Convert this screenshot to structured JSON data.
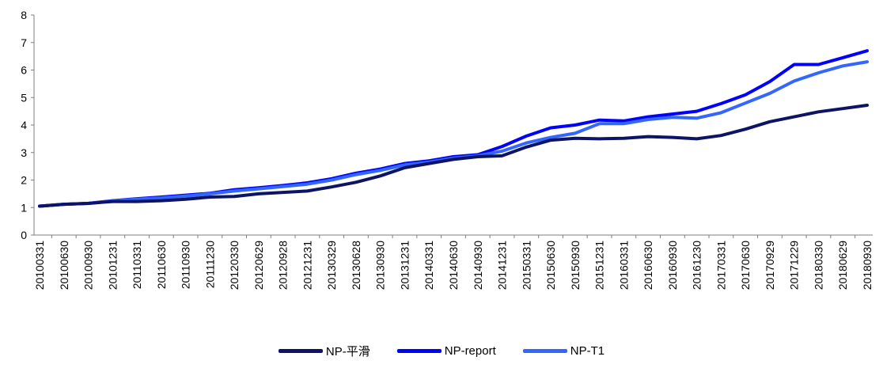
{
  "chart_data": {
    "type": "line",
    "title": "",
    "xlabel": "",
    "ylabel": "",
    "ylim": [
      0,
      8
    ],
    "yticks": [
      "0",
      "1",
      "2",
      "3",
      "4",
      "5",
      "6",
      "7",
      "8"
    ],
    "grid": false,
    "legend_position": "bottom",
    "x_tick_labels": [
      "20100331",
      "20100630",
      "20100930",
      "20101231",
      "20110331",
      "20110630",
      "20110930",
      "20111230",
      "20120330",
      "20120629",
      "20120928",
      "20121231",
      "20130329",
      "20130628",
      "20130930",
      "20131231",
      "20140331",
      "20140630",
      "20140930",
      "20141231",
      "20150331",
      "20150630",
      "20150930",
      "20151231",
      "20160331",
      "20160630",
      "20160930",
      "20161230",
      "20170331",
      "20170630",
      "20170929",
      "20171229",
      "20180330",
      "20180629",
      "20180930"
    ],
    "series": [
      {
        "name": "NP-平滑",
        "color": "#0d1466",
        "values": [
          1.05,
          1.12,
          1.15,
          1.22,
          1.22,
          1.25,
          1.3,
          1.38,
          1.4,
          1.5,
          1.55,
          1.6,
          1.75,
          1.92,
          2.15,
          2.45,
          2.6,
          2.75,
          2.85,
          2.88,
          3.2,
          3.45,
          3.52,
          3.5,
          3.52,
          3.58,
          3.55,
          3.5,
          3.62,
          3.85,
          4.12,
          4.3,
          4.48,
          4.6,
          4.72
        ]
      },
      {
        "name": "NP-report",
        "color": "#0000ff",
        "values": [
          1.05,
          1.12,
          1.15,
          1.25,
          1.32,
          1.38,
          1.45,
          1.52,
          1.65,
          1.72,
          1.8,
          1.9,
          2.05,
          2.25,
          2.4,
          2.6,
          2.7,
          2.85,
          2.92,
          3.22,
          3.6,
          3.9,
          4.0,
          4.18,
          4.15,
          4.3,
          4.4,
          4.5,
          4.78,
          5.1,
          5.58,
          6.2,
          6.2,
          6.45,
          6.7
        ]
      },
      {
        "name": "NP-T1",
        "color": "#3366ff",
        "values": [
          1.05,
          1.12,
          1.15,
          1.24,
          1.3,
          1.35,
          1.42,
          1.5,
          1.6,
          1.68,
          1.76,
          1.85,
          2.0,
          2.2,
          2.35,
          2.55,
          2.65,
          2.8,
          2.88,
          3.05,
          3.35,
          3.55,
          3.7,
          4.05,
          4.05,
          4.2,
          4.28,
          4.25,
          4.45,
          4.8,
          5.15,
          5.6,
          5.9,
          6.15,
          6.3
        ]
      }
    ]
  }
}
